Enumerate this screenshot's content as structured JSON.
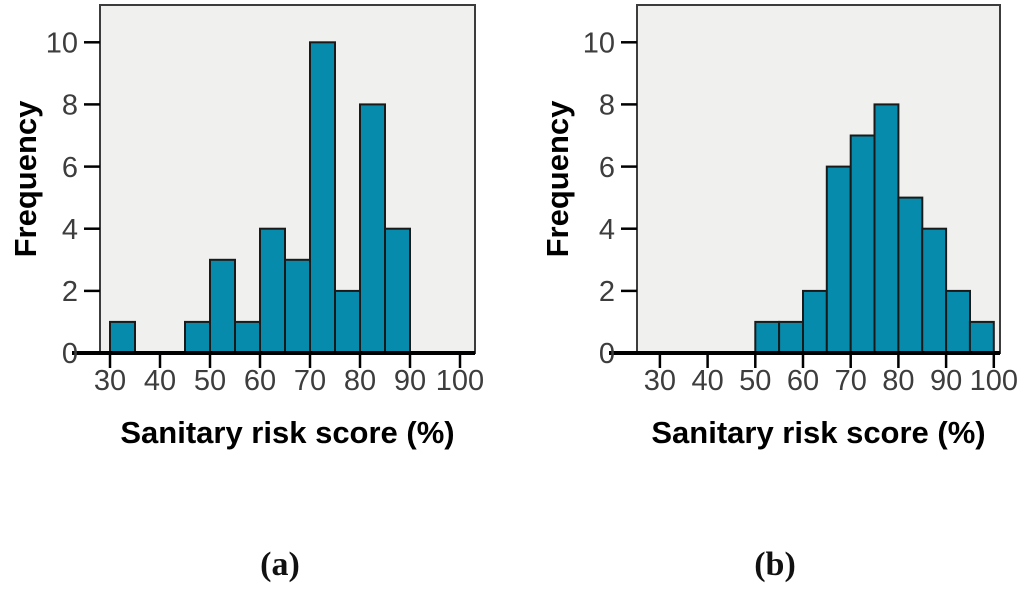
{
  "figure": {
    "description": "Two histograms of sanitary risk scores",
    "panel_a_caption": "(a)",
    "panel_b_caption": "(b)"
  },
  "colors": {
    "bar_fill": "#078BAC",
    "bar_border": "#1A1A1A",
    "plot_background": "#F0F0EE",
    "frame_border": "#3C3C3C",
    "axis_line": "#000000",
    "tick_label": "#3D3D3D",
    "title_text": "#000000"
  },
  "chart_data": [
    {
      "id": "a",
      "type": "bar",
      "subtype": "histogram",
      "caption": "(a)",
      "title": "",
      "xlabel": "Sanitary risk score (%)",
      "ylabel": "Frequency",
      "x_ticks": [
        30,
        40,
        50,
        60,
        70,
        80,
        90,
        100
      ],
      "y_ticks": [
        0,
        2,
        4,
        6,
        8,
        10
      ],
      "xlim": [
        28,
        103
      ],
      "ylim": [
        0,
        11.2
      ],
      "grid": false,
      "legend": null,
      "bin_width": 5,
      "bins": [
        {
          "x0": 30,
          "x1": 35,
          "count": 1
        },
        {
          "x0": 45,
          "x1": 50,
          "count": 1
        },
        {
          "x0": 50,
          "x1": 55,
          "count": 3
        },
        {
          "x0": 55,
          "x1": 60,
          "count": 1
        },
        {
          "x0": 60,
          "x1": 65,
          "count": 4
        },
        {
          "x0": 65,
          "x1": 70,
          "count": 3
        },
        {
          "x0": 70,
          "x1": 75,
          "count": 10
        },
        {
          "x0": 75,
          "x1": 80,
          "count": 2
        },
        {
          "x0": 80,
          "x1": 85,
          "count": 8
        },
        {
          "x0": 85,
          "x1": 90,
          "count": 4
        }
      ]
    },
    {
      "id": "b",
      "type": "bar",
      "subtype": "histogram",
      "caption": "(b)",
      "title": "",
      "xlabel": "Sanitary risk score (%)",
      "ylabel": "Frequency",
      "x_ticks": [
        30,
        40,
        50,
        60,
        70,
        80,
        90,
        100
      ],
      "y_ticks": [
        0,
        2,
        4,
        6,
        8,
        10
      ],
      "xlim": [
        25.2,
        101.3
      ],
      "ylim": [
        0,
        11.2
      ],
      "grid": false,
      "legend": null,
      "bin_width": 5,
      "bins": [
        {
          "x0": 50,
          "x1": 55,
          "count": 1
        },
        {
          "x0": 55,
          "x1": 60,
          "count": 1
        },
        {
          "x0": 60,
          "x1": 65,
          "count": 2
        },
        {
          "x0": 65,
          "x1": 70,
          "count": 6
        },
        {
          "x0": 70,
          "x1": 75,
          "count": 7
        },
        {
          "x0": 75,
          "x1": 80,
          "count": 8
        },
        {
          "x0": 80,
          "x1": 85,
          "count": 5
        },
        {
          "x0": 85,
          "x1": 90,
          "count": 4
        },
        {
          "x0": 90,
          "x1": 95,
          "count": 2
        },
        {
          "x0": 95,
          "x1": 100,
          "count": 1
        }
      ]
    }
  ]
}
